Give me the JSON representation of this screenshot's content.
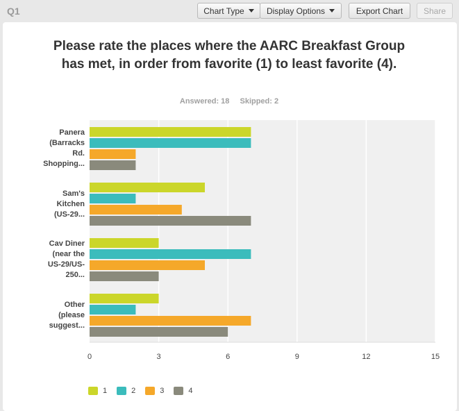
{
  "header": {
    "question_id": "Q1",
    "buttons": {
      "chart_type": "Chart Type",
      "display_options": "Display Options",
      "export_chart": "Export Chart",
      "share": "Share"
    }
  },
  "question": {
    "title": "Please rate the places where the AARC Breakfast Group has met, in order from favorite (1) to least favorite (4).",
    "answered": "Answered: 18",
    "skipped": "Skipped: 2"
  },
  "colors": {
    "series": [
      "#cbd62a",
      "#3bbcbc",
      "#f5a82a",
      "#8a8a7c"
    ],
    "plot_bg": "#f0f0f0",
    "grid": "#ffffff"
  },
  "chart_data": {
    "type": "bar",
    "orientation": "horizontal",
    "categories": [
      "Panera (Barracks Rd. Shopping...",
      "Sam's Kitchen (US-29...",
      "Cav Diner (near the US-29/US-250...",
      "Other (please suggest..."
    ],
    "category_lines": [
      [
        "Panera",
        "(Barracks",
        "Rd.",
        "Shopping..."
      ],
      [
        "Sam's",
        "Kitchen",
        "(US-29..."
      ],
      [
        "Cav Diner",
        "(near the",
        "US-29/US-",
        "250..."
      ],
      [
        "Other",
        "(please",
        "suggest..."
      ]
    ],
    "series": [
      {
        "name": "1",
        "values": [
          7,
          5,
          3,
          3
        ]
      },
      {
        "name": "2",
        "values": [
          7,
          2,
          7,
          2
        ]
      },
      {
        "name": "3",
        "values": [
          2,
          4,
          5,
          7
        ]
      },
      {
        "name": "4",
        "values": [
          2,
          7,
          3,
          6
        ]
      }
    ],
    "xlim": [
      0,
      15
    ],
    "xticks": [
      0,
      3,
      6,
      9,
      12,
      15
    ],
    "grid": true,
    "legend_position": "bottom-left"
  }
}
